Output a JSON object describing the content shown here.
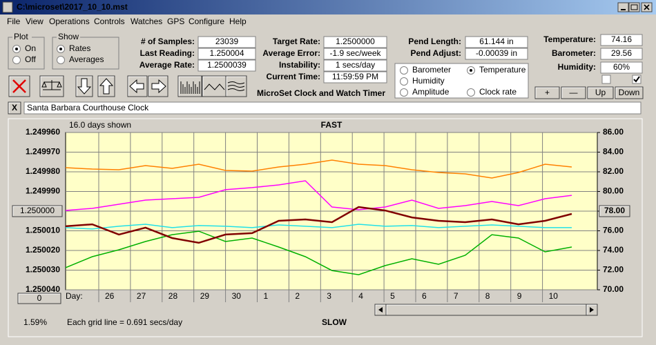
{
  "window": {
    "title": "C:\\microset\\2017_10_10.mst"
  },
  "menu": [
    "File",
    "View",
    "Operations",
    "Controls",
    "Watches",
    "GPS",
    "Configure",
    "Help"
  ],
  "plot_group": {
    "title": "Plot",
    "options": [
      {
        "label": "On",
        "selected": true
      },
      {
        "label": "Off",
        "selected": false
      }
    ]
  },
  "show_group": {
    "title": "Show",
    "options": [
      {
        "label": "Rates",
        "selected": true
      },
      {
        "label": "Averages",
        "selected": false
      }
    ]
  },
  "stats": [
    {
      "label": "# of Samples:",
      "value": "23039"
    },
    {
      "label": "Last Reading:",
      "value": "1.250004"
    },
    {
      "label": "Average Rate:",
      "value": "1.2500039"
    }
  ],
  "rate_fields": [
    {
      "label": "Target Rate:",
      "value": "1.2500000"
    },
    {
      "label": "Average Error:",
      "value": "-1.9 sec/week"
    },
    {
      "label": "Instability:",
      "value": "1 secs/day"
    },
    {
      "label": "Current Time:",
      "value": "11:59:59 PM"
    }
  ],
  "pendulum_fields": [
    {
      "label": "Pend Length:",
      "value": "61.144 in"
    },
    {
      "label": "Pend Adjust:",
      "value": "-0.00039 in"
    }
  ],
  "environment_fields": [
    {
      "label": "Temperature:",
      "value": "74.16"
    },
    {
      "label": "Barometer:",
      "value": "29.56"
    },
    {
      "label": "Humidity:",
      "value": "60%"
    }
  ],
  "checkboxes": [
    false,
    true
  ],
  "buttons": [
    "+",
    "—",
    "Up",
    "Down"
  ],
  "app_name": "MicroSet Clock and Watch Timer",
  "close_button": "X",
  "clock_name": "Santa Barbara Courthouse Clock",
  "chart_data": {
    "type": "line",
    "title": "FAST",
    "bottom_label": "SLOW",
    "days_shown": "16.0 days shown",
    "grid_note": "Each grid line = 0.691 secs/day",
    "scale_percent": "1.59%",
    "offset_button": "0",
    "xlabel": "Day:",
    "day_labels": [
      "26",
      "27",
      "28",
      "29",
      "30",
      "1",
      "2",
      "3",
      "4",
      "5",
      "6",
      "7",
      "8",
      "9",
      "10"
    ],
    "ylim": [
      1.25004,
      1.24996
    ],
    "yticks": [
      {
        "value": 1.24996,
        "label": "1.249960"
      },
      {
        "value": 1.24997,
        "label": "1.249970"
      },
      {
        "value": 1.24998,
        "label": "1.249980"
      },
      {
        "value": 1.24999,
        "label": "1.249990"
      },
      {
        "value": 1.25,
        "label": "1.250000"
      },
      {
        "value": 1.25001,
        "label": "1.250010"
      },
      {
        "value": 1.25002,
        "label": "1.250020"
      },
      {
        "value": 1.25003,
        "label": "1.250030"
      },
      {
        "value": 1.25004,
        "label": "1.250040"
      }
    ],
    "y2lim": [
      70,
      86
    ],
    "y2ticks": [
      {
        "value": 86,
        "label": "86.00"
      },
      {
        "value": 84,
        "label": "84.00"
      },
      {
        "value": 82,
        "label": "82.00"
      },
      {
        "value": 80,
        "label": "80.00"
      },
      {
        "value": 78,
        "label": "78.00"
      },
      {
        "value": 76,
        "label": "76.00"
      },
      {
        "value": 74,
        "label": "74.00"
      },
      {
        "value": 72,
        "label": "72.00"
      },
      {
        "value": 70,
        "label": "70.00"
      }
    ],
    "y_reference": {
      "value": 1.25,
      "label": "1.250000"
    },
    "y2_reference": {
      "value": 78,
      "label": "78.00"
    },
    "grid": true,
    "series": [
      {
        "name": "Barometer",
        "color": "#ff8000",
        "axis": "y2",
        "selected": false,
        "values": [
          82.42,
          82.28,
          82.21,
          82.63,
          82.35,
          82.77,
          82.14,
          82.07,
          82.49,
          82.77,
          83.19,
          82.77,
          82.63,
          82.21,
          81.93,
          81.79,
          81.37,
          81.93,
          82.77,
          82.49
        ]
      },
      {
        "name": "Temperature",
        "color": "#00b000",
        "axis": "y2",
        "selected": true,
        "values": [
          72.25,
          73.37,
          74.07,
          74.91,
          75.61,
          75.96,
          74.91,
          75.26,
          74.35,
          73.37,
          71.96,
          71.54,
          72.46,
          73.16,
          72.6,
          73.51,
          75.61,
          75.26,
          73.86,
          74.35
        ]
      },
      {
        "name": "Humidity",
        "color": "#ff00ff",
        "axis": "y2",
        "selected": false,
        "values": [
          78.07,
          78.28,
          78.7,
          79.12,
          79.26,
          79.4,
          80.18,
          80.39,
          80.67,
          81.09,
          78.42,
          78.14,
          78.42,
          79.12,
          78.28,
          78.56,
          78.98,
          78.56,
          79.26,
          79.61
        ]
      },
      {
        "name": "Amplitude",
        "color": "#20e0e8",
        "axis": "y2",
        "selected": false,
        "values": [
          76.32,
          76.18,
          76.46,
          76.67,
          76.32,
          76.53,
          76.46,
          76.32,
          76.6,
          76.46,
          76.32,
          76.67,
          76.46,
          76.53,
          76.32,
          76.46,
          76.6,
          76.46,
          76.32,
          76.32
        ]
      },
      {
        "name": "Clock rate",
        "color": "#800000",
        "axis": "y",
        "selected": false,
        "values": [
          1.2500077,
          1.2500067,
          1.2500119,
          1.2500084,
          1.2500137,
          1.2500161,
          1.2500119,
          1.2500112,
          1.2500049,
          1.2500042,
          1.2500056,
          1.2499979,
          1.2499997,
          1.2500032,
          1.2500049,
          1.2500056,
          1.2500042,
          1.2500067,
          1.2500049,
          1.2500014
        ]
      }
    ]
  }
}
